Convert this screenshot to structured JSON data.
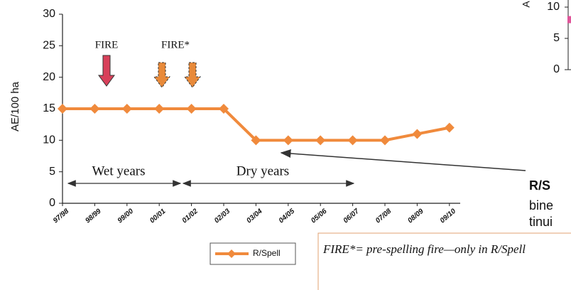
{
  "chart_data": [
    {
      "type": "line",
      "y_label": "AE/100 ha",
      "categories": [
        "97/98",
        "98/99",
        "99/00",
        "00/01",
        "01/02",
        "02/03",
        "03/04",
        "04/05",
        "05/06",
        "06/07",
        "07/08",
        "08/09",
        "09/10"
      ],
      "series": [
        {
          "name": "R/Spell",
          "color": "#f08a3c",
          "values": [
            15,
            15,
            15,
            15,
            15,
            15,
            10,
            10,
            10,
            10,
            10,
            11,
            12
          ]
        }
      ],
      "ylim": [
        0,
        30
      ],
      "yticks": [
        0,
        5,
        10,
        15,
        20,
        25,
        30
      ],
      "annotations": {
        "fire": "FIRE",
        "fire_star": "FIRE*",
        "wet": "Wet years",
        "dry": "Dry years"
      },
      "footnote": "FIRE*= pre-spelling fire—only in R/Spell"
    },
    {
      "type": "line",
      "y_label": "A",
      "categories": [
        null
      ],
      "series": [
        {
          "name": null,
          "color": "#e0559a",
          "values": [
            8
          ]
        }
      ],
      "ylim": [
        0,
        10
      ],
      "yticks": [
        0,
        5,
        10
      ],
      "text": [
        "R/S",
        "bine",
        "tinui"
      ]
    }
  ]
}
